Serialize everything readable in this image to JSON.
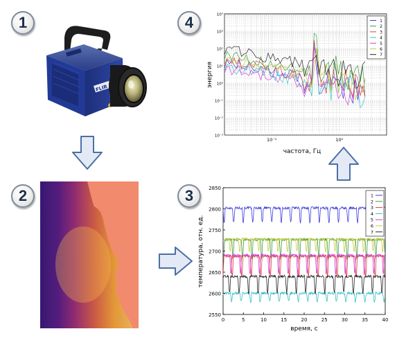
{
  "steps": [
    "1",
    "2",
    "3",
    "4"
  ],
  "camera": {
    "brand": "FLIR"
  },
  "chart_spectrum": {
    "type": "line",
    "xlabel": "частота, Гц",
    "ylabel": "энергия",
    "xscale": "log",
    "yscale": "log",
    "xlim": [
      0.02,
      5
    ],
    "ylim": [
      0.001,
      10000
    ],
    "x_ticks": [
      "10⁻¹",
      "10⁰"
    ],
    "y_ticks": [
      "10⁻³",
      "10⁻²",
      "10⁻¹",
      "10⁰",
      "10¹",
      "10²",
      "10³",
      "10⁴"
    ],
    "grid": true,
    "legend": "top-right",
    "series": [
      {
        "name": "1",
        "color": "#3a3adf"
      },
      {
        "name": "2",
        "color": "#3a9a3a"
      },
      {
        "name": "3",
        "color": "#e23a3a"
      },
      {
        "name": "4",
        "color": "#35bfc4"
      },
      {
        "name": "5",
        "color": "#d43ad4"
      },
      {
        "name": "6",
        "color": "#c9c93a"
      },
      {
        "name": "7",
        "color": "#222222"
      }
    ]
  },
  "chart_temperature": {
    "type": "line",
    "xlabel": "время, с",
    "ylabel": "температура, отн. ед.",
    "xlim": [
      0,
      40
    ],
    "ylim": [
      2550,
      2850
    ],
    "x_ticks": [
      "0",
      "5",
      "10",
      "15",
      "20",
      "25",
      "30",
      "35",
      "40"
    ],
    "y_ticks": [
      "2550",
      "2600",
      "2650",
      "2700",
      "2750",
      "2800",
      "2850"
    ],
    "legend": "top-right",
    "period_s": 2.35,
    "series": [
      {
        "name": "1",
        "color": "#3a3adf",
        "base": 2802,
        "amp": 35
      },
      {
        "name": "2",
        "color": "#3a9a3a",
        "base": 2727,
        "amp": 45
      },
      {
        "name": "3",
        "color": "#e23a3a",
        "base": 2688,
        "amp": 50
      },
      {
        "name": "4",
        "color": "#35bfc4",
        "base": 2600,
        "amp": 20
      },
      {
        "name": "5",
        "color": "#d43ad4",
        "base": 2690,
        "amp": 45
      },
      {
        "name": "6",
        "color": "#c9c93a",
        "base": 2728,
        "amp": 30
      },
      {
        "name": "7",
        "color": "#222222",
        "base": 2640,
        "amp": 40
      }
    ]
  }
}
